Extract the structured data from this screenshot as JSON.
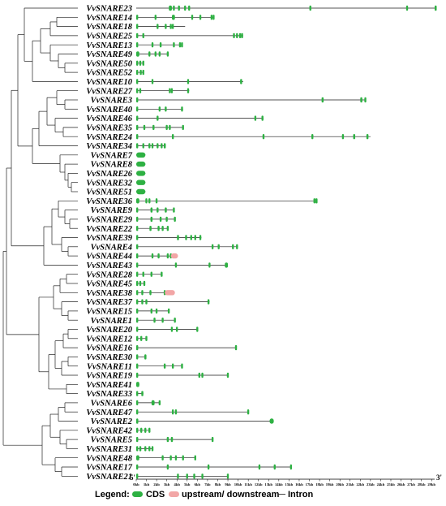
{
  "chart_data": {
    "type": "gene-structure",
    "genes": [
      {
        "name": "VvSNARE23",
        "len": 29.5,
        "cds": [
          [
            3.2,
            3.5
          ],
          [
            3.6,
            3.7
          ],
          [
            4.1,
            4.2
          ],
          [
            4.7,
            4.8
          ],
          [
            5.1,
            5.2
          ],
          [
            17,
            17.1
          ],
          [
            26.5,
            26.6
          ],
          [
            29.3,
            29.5
          ]
        ]
      },
      {
        "name": "VvSNARE14",
        "len": 7.6,
        "cds": [
          [
            0,
            0.15
          ],
          [
            1.8,
            1.9
          ],
          [
            3.5,
            3.8
          ],
          [
            5.4,
            5.5
          ],
          [
            6.2,
            6.3
          ],
          [
            7.3,
            7.4
          ],
          [
            7.5,
            7.6
          ]
        ]
      },
      {
        "name": "VvSNARE18",
        "len": 4.8,
        "cds": [
          [
            0,
            0.1
          ],
          [
            2,
            2.1
          ],
          [
            2.8,
            2.9
          ],
          [
            3.3,
            3.4
          ],
          [
            3.5,
            3.6
          ]
        ]
      },
      {
        "name": "VvSNARE25",
        "len": 10.5,
        "cds": [
          [
            0,
            0.1
          ],
          [
            0.6,
            0.7
          ],
          [
            9.5,
            9.6
          ],
          [
            9.8,
            9.9
          ],
          [
            10.1,
            10.2
          ],
          [
            10.3,
            10.4
          ]
        ]
      },
      {
        "name": "VvSNARE13",
        "len": 4.5,
        "cds": [
          [
            0,
            0.1
          ],
          [
            1.5,
            1.6
          ],
          [
            2.3,
            2.4
          ],
          [
            3.6,
            3.7
          ],
          [
            4.2,
            4.3
          ],
          [
            4.4,
            4.5
          ]
        ]
      },
      {
        "name": "VvSNARE49",
        "len": 3.2,
        "cds": [
          [
            0,
            0.3
          ],
          [
            1.2,
            1.3
          ],
          [
            1.8,
            1.9
          ],
          [
            2.2,
            2.3
          ],
          [
            3.0,
            3.1
          ]
        ]
      },
      {
        "name": "VvSNARE50",
        "len": 0.7,
        "cds": [
          [
            0,
            0.1
          ],
          [
            0.3,
            0.4
          ],
          [
            0.6,
            0.7
          ]
        ]
      },
      {
        "name": "VvSNARE52",
        "len": 0.7,
        "cds": [
          [
            0,
            0.1
          ],
          [
            0.35,
            0.45
          ],
          [
            0.6,
            0.7
          ]
        ]
      },
      {
        "name": "VvSNARE10",
        "len": 10.5,
        "cds": [
          [
            0,
            0.1
          ],
          [
            1.5,
            1.6
          ],
          [
            5,
            5.1
          ],
          [
            10.2,
            10.4
          ]
        ]
      },
      {
        "name": "VvSNARE27",
        "len": 5.2,
        "cds": [
          [
            0,
            0.15
          ],
          [
            0.3,
            0.4
          ],
          [
            3.2,
            3.3
          ],
          [
            3.4,
            3.5
          ],
          [
            5.0,
            5.1
          ]
        ]
      },
      {
        "name": "VvSNARE3",
        "len": 22.5,
        "cds": [
          [
            0,
            0.1
          ],
          [
            18.2,
            18.4
          ],
          [
            22,
            22.2
          ],
          [
            22.4,
            22.5
          ]
        ]
      },
      {
        "name": "VvSNARE40",
        "len": 4.6,
        "cds": [
          [
            0,
            0.1
          ],
          [
            2.2,
            2.3
          ],
          [
            2.8,
            2.9
          ],
          [
            4.4,
            4.5
          ]
        ]
      },
      {
        "name": "VvSNARE46",
        "len": 12.5,
        "cds": [
          [
            0,
            0.1
          ],
          [
            2.0,
            2.1
          ],
          [
            11.6,
            11.7
          ],
          [
            12.3,
            12.4
          ]
        ]
      },
      {
        "name": "VvSNARE35",
        "len": 4.6,
        "cds": [
          [
            0,
            0.1
          ],
          [
            0.7,
            0.8
          ],
          [
            1.6,
            1.7
          ],
          [
            2.9,
            3.0
          ],
          [
            3.2,
            3.3
          ],
          [
            4.5,
            4.6
          ]
        ]
      },
      {
        "name": "VvSNARE24",
        "len": 23,
        "cds": [
          [
            0,
            0.1
          ],
          [
            3.5,
            3.6
          ],
          [
            12.4,
            12.5
          ],
          [
            17.2,
            17.3
          ],
          [
            20.2,
            20.3
          ],
          [
            21.3,
            21.5
          ],
          [
            22.6,
            22.8
          ]
        ]
      },
      {
        "name": "VvSNARE34",
        "len": 2.9,
        "cds": [
          [
            0,
            0.1
          ],
          [
            0.6,
            0.7
          ],
          [
            1.2,
            1.3
          ],
          [
            1.5,
            1.6
          ],
          [
            2.0,
            2.1
          ],
          [
            2.4,
            2.5
          ],
          [
            2.7,
            2.9
          ]
        ]
      },
      {
        "name": "VvSNARE7",
        "len": 0.9,
        "cds": [
          [
            0,
            0.9
          ]
        ]
      },
      {
        "name": "VvSNARE8",
        "len": 0.9,
        "cds": [
          [
            0,
            0.9
          ]
        ]
      },
      {
        "name": "VvSNARE26",
        "len": 0.9,
        "cds": [
          [
            0,
            0.9
          ]
        ]
      },
      {
        "name": "VvSNARE32",
        "len": 0.9,
        "cds": [
          [
            0,
            0.9
          ]
        ]
      },
      {
        "name": "VvSNARE51",
        "len": 0.9,
        "cds": [
          [
            0,
            0.9
          ]
        ]
      },
      {
        "name": "VvSNARE36",
        "len": 17.8,
        "cds": [
          [
            0,
            0.3
          ],
          [
            0.9,
            1.0
          ],
          [
            1.2,
            1.3
          ],
          [
            1.9,
            2.0
          ],
          [
            17.4,
            17.5
          ],
          [
            17.6,
            17.8
          ]
        ]
      },
      {
        "name": "VvSNARE9",
        "len": 3.7,
        "cds": [
          [
            0,
            0.1
          ],
          [
            1.4,
            1.6
          ],
          [
            2.0,
            2.1
          ],
          [
            2.8,
            3.0
          ],
          [
            3.6,
            3.7
          ]
        ]
      },
      {
        "name": "VvSNARE29",
        "len": 3.8,
        "cds": [
          [
            0,
            0.1
          ],
          [
            1.4,
            1.6
          ],
          [
            2.3,
            2.4
          ],
          [
            2.9,
            3.0
          ],
          [
            3.7,
            3.8
          ]
        ]
      },
      {
        "name": "VvSNARE22",
        "len": 3.1,
        "cds": [
          [
            0,
            0.1
          ],
          [
            1.3,
            1.5
          ],
          [
            2.1,
            2.2
          ],
          [
            2.5,
            2.6
          ],
          [
            3.0,
            3.1
          ]
        ]
      },
      {
        "name": "VvSNARE39",
        "len": 6.4,
        "cds": [
          [
            0,
            0.1
          ],
          [
            4.0,
            4.2
          ],
          [
            4.8,
            4.9
          ],
          [
            5.3,
            5.4
          ],
          [
            5.7,
            5.8
          ],
          [
            6.2,
            6.3
          ]
        ]
      },
      {
        "name": "VvSNARE4",
        "len": 10,
        "cds": [
          [
            0,
            0.1
          ],
          [
            7.4,
            7.5
          ],
          [
            8.0,
            8.1
          ],
          [
            9.4,
            9.5
          ],
          [
            9.8,
            9.9
          ]
        ]
      },
      {
        "name": "VvSNARE44",
        "len": 3.8,
        "cds": [
          [
            0,
            0.1
          ],
          [
            1.5,
            1.6
          ],
          [
            2.1,
            2.2
          ],
          [
            3.0,
            3.1
          ],
          [
            3.3,
            3.4
          ]
        ],
        "utr": [
          [
            3.4,
            4.1
          ]
        ]
      },
      {
        "name": "VvSNARE43",
        "len": 9,
        "cds": [
          [
            0,
            0.1
          ],
          [
            3.8,
            3.9
          ],
          [
            7.1,
            7.2
          ],
          [
            8.7,
            9.0
          ]
        ]
      },
      {
        "name": "VvSNARE28",
        "len": 2.5,
        "cds": [
          [
            0,
            0.1
          ],
          [
            0.6,
            0.7
          ],
          [
            1.4,
            1.5
          ],
          [
            2.4,
            2.5
          ]
        ]
      },
      {
        "name": "VvSNARE45",
        "len": 0.8,
        "cds": [
          [
            0,
            0.1
          ],
          [
            0.3,
            0.4
          ],
          [
            0.7,
            0.8
          ]
        ]
      },
      {
        "name": "VvSNARE38",
        "len": 2.8,
        "cds": [
          [
            0,
            0.1
          ],
          [
            0.5,
            0.6
          ],
          [
            1.3,
            1.4
          ],
          [
            2.7,
            2.8
          ]
        ],
        "utr": [
          [
            2.8,
            3.8
          ]
        ]
      },
      {
        "name": "VvSNARE37",
        "len": 7.2,
        "cds": [
          [
            0,
            0.1
          ],
          [
            0.5,
            0.6
          ],
          [
            0.9,
            1.0
          ],
          [
            7.0,
            7.1
          ]
        ]
      },
      {
        "name": "VvSNARE15",
        "len": 3.2,
        "cds": [
          [
            0,
            0.1
          ],
          [
            1.4,
            1.5
          ],
          [
            1.9,
            2.0
          ],
          [
            3.1,
            3.2
          ]
        ]
      },
      {
        "name": "VvSNARE1",
        "len": 3.8,
        "cds": [
          [
            0,
            0.1
          ],
          [
            1.7,
            1.8
          ],
          [
            2.5,
            2.6
          ],
          [
            3.7,
            3.8
          ]
        ]
      },
      {
        "name": "VvSNARE20",
        "len": 6,
        "cds": [
          [
            0,
            0.1
          ],
          [
            3.4,
            3.5
          ],
          [
            3.9,
            4.0
          ],
          [
            5.9,
            6.0
          ]
        ]
      },
      {
        "name": "VvSNARE12",
        "len": 1,
        "cds": [
          [
            0,
            0.1
          ],
          [
            0.4,
            0.5
          ],
          [
            0.9,
            1.0
          ]
        ]
      },
      {
        "name": "VvSNARE16",
        "len": 9.8,
        "cds": [
          [
            0,
            0.1
          ],
          [
            9.7,
            9.8
          ]
        ]
      },
      {
        "name": "VvSNARE30",
        "len": 1,
        "cds": [
          [
            0,
            0.1
          ],
          [
            0.8,
            1.0
          ]
        ]
      },
      {
        "name": "VvSNARE11",
        "len": 4.5,
        "cds": [
          [
            0,
            0.1
          ],
          [
            2.7,
            2.8
          ],
          [
            3.5,
            3.6
          ],
          [
            4.4,
            4.5
          ]
        ]
      },
      {
        "name": "VvSNARE19",
        "len": 9,
        "cds": [
          [
            0,
            0.1
          ],
          [
            6.1,
            6.2
          ],
          [
            6.4,
            6.5
          ],
          [
            8.9,
            9.0
          ]
        ]
      },
      {
        "name": "VvSNARE41",
        "len": 0.3,
        "cds": [
          [
            0,
            0.3
          ]
        ]
      },
      {
        "name": "VvSNARE33",
        "len": 0.7,
        "cds": [
          [
            0,
            0.1
          ],
          [
            0.5,
            0.7
          ]
        ]
      },
      {
        "name": "VvSNARE6",
        "len": 2.3,
        "cds": [
          [
            0,
            0.1
          ],
          [
            1.5,
            1.8
          ],
          [
            2.2,
            2.3
          ]
        ]
      },
      {
        "name": "VvSNARE47",
        "len": 11,
        "cds": [
          [
            0,
            0.1
          ],
          [
            3.5,
            3.6
          ],
          [
            3.8,
            3.9
          ],
          [
            10.9,
            11.0
          ]
        ]
      },
      {
        "name": "VvSNARE2",
        "len": 13.5,
        "cds": [
          [
            0,
            0.2
          ],
          [
            13.1,
            13.5
          ]
        ]
      },
      {
        "name": "VvSNARE42",
        "len": 1.3,
        "cds": [
          [
            0,
            0.1
          ],
          [
            0.4,
            0.5
          ],
          [
            0.8,
            0.9
          ],
          [
            1.2,
            1.3
          ]
        ]
      },
      {
        "name": "VvSNARE5",
        "len": 7.5,
        "cds": [
          [
            0,
            0.1
          ],
          [
            3.0,
            3.2
          ],
          [
            3.4,
            3.6
          ],
          [
            7.4,
            7.5
          ]
        ]
      },
      {
        "name": "VvSNARE31",
        "len": 1.6,
        "cds": [
          [
            0,
            0.1
          ],
          [
            0.3,
            0.5
          ],
          [
            0.8,
            0.9
          ],
          [
            1.2,
            1.3
          ],
          [
            1.5,
            1.6
          ]
        ]
      },
      {
        "name": "VvSNARE48",
        "len": 5.8,
        "cds": [
          [
            0,
            0.3
          ],
          [
            2.5,
            2.6
          ],
          [
            3.3,
            3.4
          ],
          [
            3.8,
            3.9
          ],
          [
            4.5,
            4.6
          ],
          [
            5.7,
            5.8
          ]
        ]
      },
      {
        "name": "VvSNARE17",
        "len": 15.2,
        "cds": [
          [
            0,
            0.1
          ],
          [
            3.0,
            3.1
          ],
          [
            7.0,
            7.1
          ],
          [
            12.0,
            12.1
          ],
          [
            13.5,
            13.6
          ],
          [
            15.1,
            15.2
          ]
        ]
      },
      {
        "name": "VvSNARE21",
        "len": 9,
        "cds": [
          [
            0,
            0.1
          ],
          [
            4.0,
            4.1
          ],
          [
            4.9,
            5.0
          ],
          [
            5.6,
            5.7
          ],
          [
            6.4,
            6.5
          ],
          [
            8.9,
            9.0
          ]
        ]
      }
    ],
    "axis": {
      "min": 0,
      "max": 29,
      "ticks": [
        "0kb",
        "1kb",
        "2kb",
        "3kb",
        "4kb",
        "5kb",
        "6kb",
        "7kb",
        "8kb",
        "9kb",
        "10kb",
        "11kb",
        "12kb",
        "13kb",
        "14kb",
        "15kb",
        "16kb",
        "17kb",
        "18kb",
        "19kb",
        "20kb",
        "21kb",
        "22kb",
        "23kb",
        "24kb",
        "25kb",
        "26kb",
        "27kb",
        "28kb",
        "29kb"
      ],
      "left_end": "5'",
      "right_end": "3'"
    },
    "legend": {
      "title": "Legend:",
      "items": [
        {
          "label": "CDS",
          "color": "#2eb143"
        },
        {
          "label": "upstream/ downstream",
          "color": "#f2a6a6"
        },
        {
          "label": "Intron",
          "color": "#333333"
        }
      ]
    }
  }
}
